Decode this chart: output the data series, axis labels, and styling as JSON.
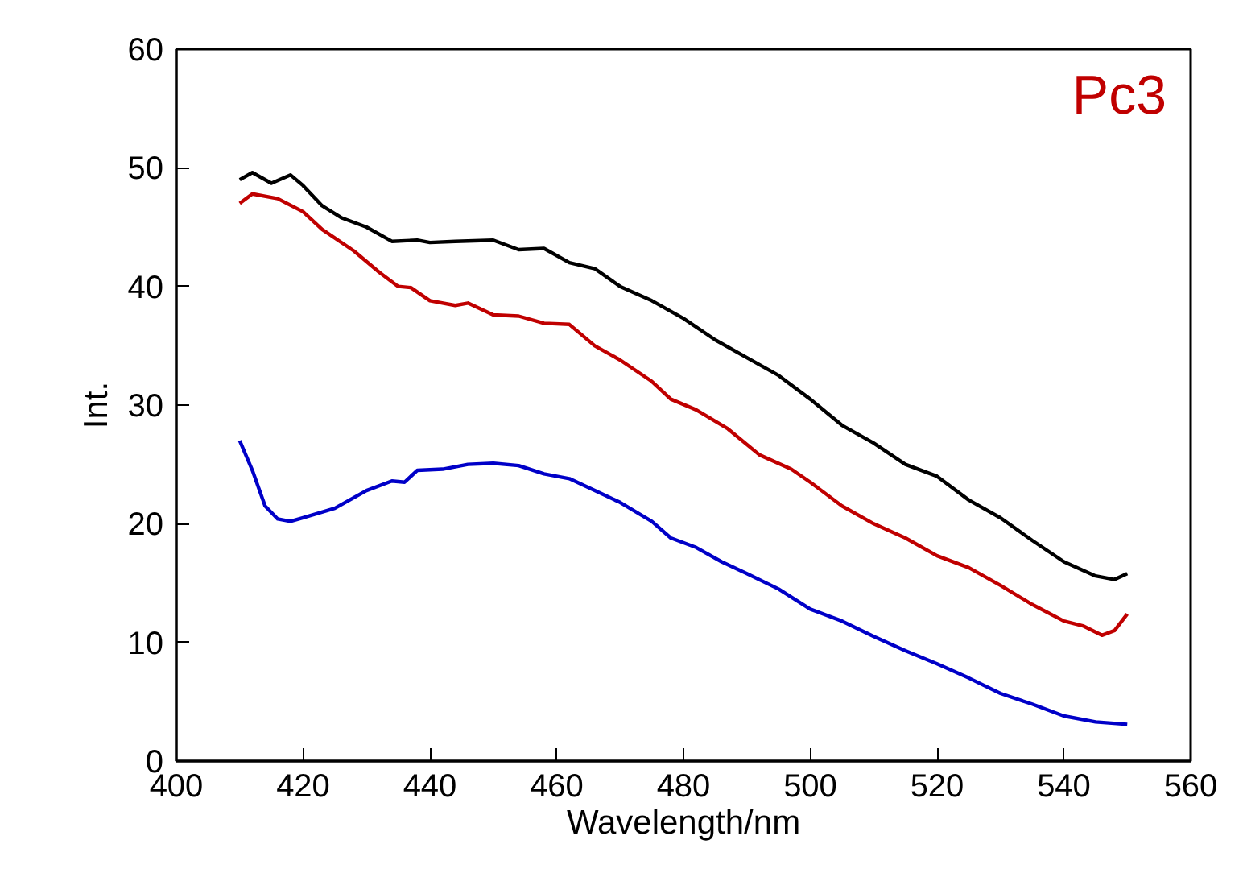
{
  "chart_data": {
    "type": "line",
    "xlabel": "Wavelength/nm",
    "ylabel": "Int.",
    "annotations": [
      "Pc3"
    ],
    "xlim": [
      400,
      560
    ],
    "xticks": [
      400,
      420,
      440,
      460,
      480,
      500,
      520,
      540,
      560
    ],
    "ylim": [
      0,
      60
    ],
    "yticks": [
      0,
      10,
      20,
      30,
      40,
      50,
      60
    ],
    "grid": false,
    "marker": "none",
    "line_style": "solid",
    "series": [
      {
        "color": "#000000",
        "x": [
          410,
          412,
          415,
          418,
          420,
          423,
          426,
          430,
          434,
          438,
          440,
          444,
          450,
          454,
          458,
          462,
          466,
          470,
          475,
          480,
          485,
          490,
          495,
          500,
          505,
          510,
          515,
          520,
          525,
          530,
          535,
          540,
          545,
          548,
          550
        ],
        "values": [
          49,
          49.6,
          48.7,
          49.4,
          48.5,
          46.8,
          45.8,
          45,
          43.8,
          43.9,
          43.7,
          43.8,
          43.9,
          43.1,
          43.2,
          42,
          41.5,
          40,
          38.8,
          37.3,
          35.5,
          34,
          32.5,
          30.5,
          28.3,
          26.8,
          25,
          24,
          22,
          20.5,
          18.6,
          16.8,
          15.6,
          15.3,
          15.8
        ]
      },
      {
        "color": "#c00000",
        "x": [
          410,
          412,
          416,
          420,
          423,
          428,
          432,
          435,
          437,
          440,
          444,
          446,
          450,
          454,
          458,
          462,
          466,
          470,
          475,
          478,
          482,
          487,
          492,
          497,
          500,
          505,
          510,
          515,
          520,
          525,
          530,
          535,
          540,
          543,
          546,
          548,
          550
        ],
        "values": [
          47,
          47.8,
          47.4,
          46.3,
          44.8,
          43,
          41.2,
          40,
          39.9,
          38.8,
          38.4,
          38.6,
          37.6,
          37.5,
          36.9,
          36.8,
          35,
          33.8,
          32,
          30.5,
          29.6,
          28,
          25.8,
          24.6,
          23.5,
          21.5,
          20,
          18.8,
          17.3,
          16.3,
          14.8,
          13.2,
          11.8,
          11.4,
          10.6,
          11,
          12.4
        ]
      },
      {
        "color": "#0000c8",
        "x": [
          410,
          412,
          414,
          416,
          418,
          420,
          425,
          430,
          434,
          436,
          438,
          442,
          446,
          450,
          454,
          458,
          462,
          466,
          470,
          475,
          478,
          482,
          486,
          490,
          495,
          500,
          505,
          510,
          515,
          520,
          525,
          530,
          535,
          540,
          545,
          550
        ],
        "values": [
          27,
          24.5,
          21.5,
          20.4,
          20.2,
          20.5,
          21.3,
          22.8,
          23.6,
          23.5,
          24.5,
          24.6,
          25,
          25.1,
          24.9,
          24.2,
          23.8,
          22.8,
          21.8,
          20.2,
          18.8,
          18,
          16.8,
          15.8,
          14.5,
          12.8,
          11.8,
          10.5,
          9.3,
          8.2,
          7,
          5.7,
          4.8,
          3.8,
          3.3,
          3.1
        ]
      }
    ]
  }
}
